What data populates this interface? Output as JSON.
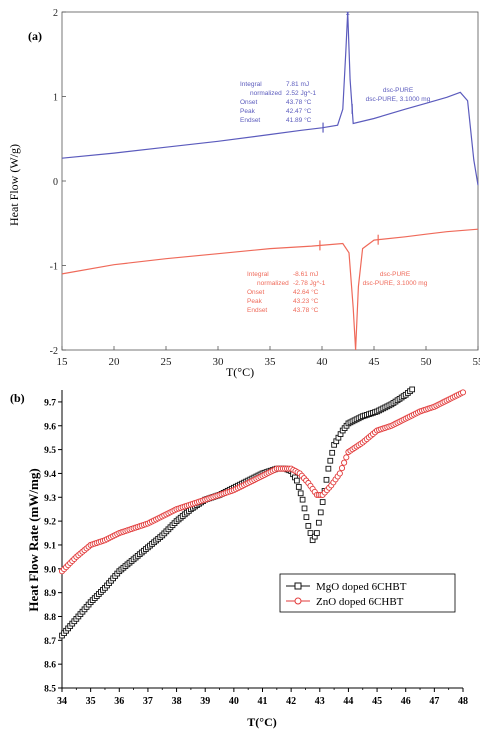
{
  "chart_data": [
    {
      "type": "line",
      "panel_label": "(a)",
      "xlabel": "T(°C)",
      "ylabel": "Heat Flow (W/g)",
      "xlim": [
        15,
        55
      ],
      "ylim": [
        -2,
        2
      ],
      "x_ticks": [
        "15",
        "20",
        "25",
        "30",
        "35",
        "40",
        "45",
        "50",
        "55"
      ],
      "y_ticks": [
        "2",
        "1",
        "0",
        "-1",
        "-2"
      ],
      "colors": {
        "heating": "#5b5bbd",
        "cooling": "#ef6a5a",
        "axis": "#555555"
      },
      "series": [
        {
          "x": [
            15,
            20,
            25,
            30,
            35,
            38,
            40,
            41.5,
            42.0,
            42.3,
            42.47,
            42.7,
            43.0,
            45,
            48,
            50,
            52,
            53.3,
            54,
            54.6,
            55
          ],
          "y": [
            0.27,
            0.33,
            0.4,
            0.47,
            0.55,
            0.6,
            0.63,
            0.66,
            0.85,
            1.55,
            2.0,
            1.2,
            0.68,
            0.74,
            0.85,
            0.92,
            0.99,
            1.05,
            0.95,
            0.25,
            -0.05
          ]
        },
        {
          "x": [
            15,
            20,
            25,
            30,
            35,
            39,
            42,
            42.6,
            43.0,
            43.23,
            43.5,
            43.9,
            45,
            48,
            50,
            52,
            55
          ],
          "y": [
            -1.1,
            -0.99,
            -0.92,
            -0.86,
            -0.8,
            -0.77,
            -0.74,
            -0.85,
            -1.5,
            -2.0,
            -1.25,
            -0.8,
            -0.7,
            -0.66,
            -0.63,
            -0.6,
            -0.57
          ]
        }
      ],
      "annotations": [
        {
          "lines": [
            [
              "Integral",
              "7.81 mJ"
            ],
            [
              "normalized",
              "2.52 Jg^-1"
            ],
            [
              "Onset",
              "43.78 °C"
            ],
            [
              "Peak",
              "42.47 °C"
            ],
            [
              "Endset",
              "41.89 °C"
            ]
          ],
          "sample": [
            "dsc-PURE",
            "dsc-PURE, 3.1000 mg"
          ]
        },
        {
          "lines": [
            [
              "Integral",
              "-8.61 mJ"
            ],
            [
              "normalized",
              "-2.78 Jg^-1"
            ],
            [
              "Onset",
              "42.64 °C"
            ],
            [
              "Peak",
              "43.23 °C"
            ],
            [
              "Endset",
              "43.78 °C"
            ]
          ],
          "sample": [
            "dsc-PURE",
            "dsc-PURE, 3.1000 mg"
          ]
        }
      ],
      "onset_markers": [
        {
          "series": 0,
          "x": [
            40.1,
            42.9
          ]
        },
        {
          "series": 1,
          "x": [
            39.8,
            45.4
          ]
        }
      ]
    },
    {
      "type": "line",
      "panel_label": "(b)",
      "xlabel": "T(°C)",
      "ylabel": "Heat Flow Rate (mW/mg)",
      "xlim": [
        34,
        48
      ],
      "ylim": [
        8.5,
        9.75
      ],
      "x_ticks": [
        "34",
        "35",
        "36",
        "37",
        "38",
        "39",
        "40",
        "41",
        "42",
        "43",
        "44",
        "45",
        "46",
        "47",
        "48"
      ],
      "y_ticks": [
        "8.5",
        "8.6",
        "8.7",
        "8.8",
        "8.9",
        "9.0",
        "9.1",
        "9.2",
        "9.3",
        "9.4",
        "9.5",
        "9.6",
        "9.7"
      ],
      "legend_position": "lower-right",
      "series": [
        {
          "name": "MgO doped 6CHBT",
          "color": "#111111",
          "marker": "square",
          "x": [
            34,
            34.5,
            35,
            35.5,
            36,
            36.5,
            37,
            37.5,
            38,
            38.5,
            39,
            39.5,
            40,
            40.5,
            41,
            41.5,
            41.8,
            42.0,
            42.2,
            42.4,
            42.6,
            42.75,
            42.9,
            43.1,
            43.3,
            43.5,
            43.8,
            44,
            44.5,
            45,
            45.5,
            46,
            46.3
          ],
          "y": [
            8.72,
            8.79,
            8.86,
            8.92,
            8.99,
            9.04,
            9.09,
            9.14,
            9.2,
            9.25,
            9.29,
            9.31,
            9.34,
            9.37,
            9.4,
            9.42,
            9.42,
            9.41,
            9.37,
            9.29,
            9.18,
            9.12,
            9.15,
            9.28,
            9.42,
            9.52,
            9.58,
            9.61,
            9.64,
            9.66,
            9.69,
            9.73,
            9.76
          ]
        },
        {
          "name": "ZnO doped 6CHBT",
          "color": "#e23b3b",
          "marker": "circle",
          "x": [
            34,
            34.5,
            35,
            35.5,
            36,
            36.5,
            37,
            37.5,
            38,
            38.5,
            39,
            39.5,
            40,
            40.5,
            41,
            41.5,
            42.0,
            42.3,
            42.6,
            42.9,
            43.1,
            43.4,
            43.7,
            44,
            44.5,
            45,
            45.5,
            46,
            46.5,
            47,
            47.5,
            48
          ],
          "y": [
            8.99,
            9.05,
            9.1,
            9.12,
            9.15,
            9.17,
            9.19,
            9.22,
            9.25,
            9.27,
            9.29,
            9.31,
            9.33,
            9.36,
            9.39,
            9.42,
            9.42,
            9.4,
            9.36,
            9.31,
            9.31,
            9.35,
            9.4,
            9.49,
            9.53,
            9.58,
            9.6,
            9.63,
            9.66,
            9.68,
            9.71,
            9.74
          ]
        }
      ]
    }
  ]
}
